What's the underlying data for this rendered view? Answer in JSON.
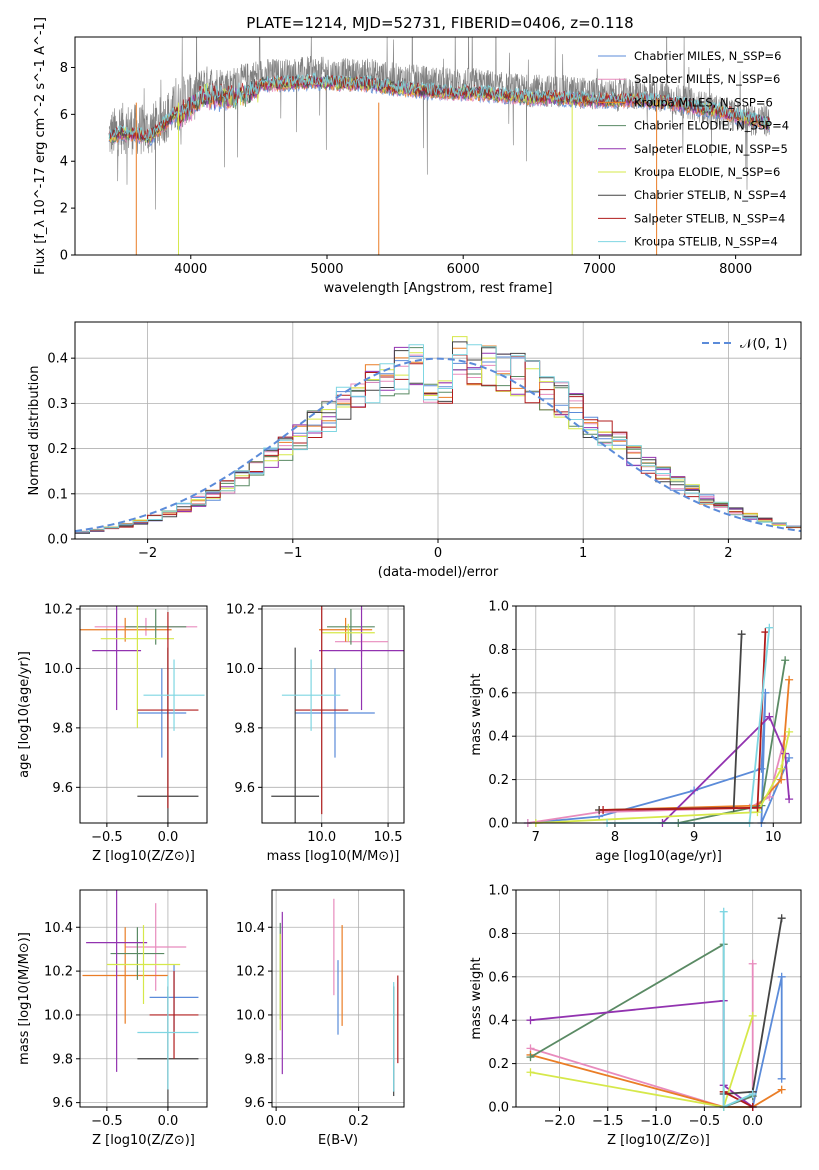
{
  "figure": {
    "title": "PLATE=1214, MJD=52731, FIBERID=0406, z=0.118"
  },
  "legend_spectrum": [
    {
      "label": "Chabrier MILES, N_SSP=6",
      "color": "#5b8bd9"
    },
    {
      "label": "Salpeter MILES, N_SSP=6",
      "color": "#e88bbd"
    },
    {
      "label": "Kroupa MILES, N_SSP=6",
      "color": "#ea7d26"
    },
    {
      "label": "Chabrier ELODIE, N_SSP=4",
      "color": "#5a8a64"
    },
    {
      "label": "Salpeter ELODIE, N_SSP=5",
      "color": "#9233b0"
    },
    {
      "label": "Kroupa ELODIE, N_SSP=6",
      "color": "#d6e84a"
    },
    {
      "label": "Chabrier STELIB, N_SSP=4",
      "color": "#444444"
    },
    {
      "label": "Salpeter STELIB, N_SSP=4",
      "color": "#b01c1c"
    },
    {
      "label": "Kroupa STELIB, N_SSP=4",
      "color": "#7fd6e2"
    }
  ],
  "legend_hist": {
    "label": "𝒩(0, 1)",
    "color": "#5b8bd9"
  },
  "chart_data": [
    {
      "id": "spectrum",
      "type": "line",
      "xlabel": "wavelength [Angstrom, rest frame]",
      "ylabel": "Flux [f_λ 10^-17 erg cm^-2 s^-1 A^-1]",
      "xlim": [
        3150,
        8480
      ],
      "ylim": [
        0,
        9.3
      ],
      "xticks": [
        4000,
        5000,
        6000,
        7000,
        8000
      ],
      "yticks": [
        0,
        2,
        4,
        6,
        8
      ],
      "data_color": "#808080",
      "x": [
        3400,
        3500,
        3700,
        3900,
        4100,
        4300,
        4500,
        4700,
        4900,
        5100,
        5300,
        5500,
        5700,
        5900,
        6100,
        6300,
        6500,
        6700,
        6900,
        7100,
        7300,
        7500,
        7700,
        7900,
        8100,
        8250
      ],
      "data_flux": [
        5.1,
        5.4,
        5.3,
        6.3,
        7.4,
        7.3,
        7.7,
        7.7,
        7.8,
        7.7,
        7.7,
        7.5,
        7.4,
        7.3,
        7.3,
        7.1,
        7.0,
        7.0,
        6.9,
        6.8,
        6.9,
        6.7,
        6.4,
        6.1,
        5.8,
        5.7
      ],
      "model_flux": [
        5.0,
        5.2,
        5.0,
        6.1,
        7.1,
        7.0,
        7.3,
        7.3,
        7.4,
        7.3,
        7.3,
        7.1,
        7.0,
        6.9,
        6.9,
        6.8,
        6.7,
        6.7,
        6.6,
        6.6,
        6.6,
        6.5,
        6.3,
        6.1,
        5.8,
        5.6
      ]
    },
    {
      "id": "residuals",
      "type": "bar",
      "xlabel": "(data-model)/error",
      "ylabel": "Normed distribution",
      "xlim": [
        -2.5,
        2.5
      ],
      "ylim": [
        0,
        0.48
      ],
      "xticks": [
        -2,
        -1,
        0,
        1,
        2
      ],
      "yticks": [
        0.0,
        0.1,
        0.2,
        0.3,
        0.4
      ],
      "bin_width": 0.1,
      "bin_start": -2.5,
      "normal_curve": {
        "mean": 0.0,
        "sigma": 1.0
      }
    },
    {
      "id": "age-vs-Z",
      "type": "scatter",
      "xlabel": "Z [log10(Z/Z⊙)]",
      "ylabel": "age  [log10(age/yr)]",
      "xlim": [
        -0.72,
        0.32
      ],
      "ylim": [
        9.48,
        10.21
      ],
      "xticks": [
        -0.5,
        0.0
      ],
      "yticks": [
        9.6,
        9.8,
        10.0,
        10.2
      ],
      "points": [
        {
          "x": -0.05,
          "xerr": 0.2,
          "y": 9.85,
          "yerr": 0.15,
          "color": "#5b8bd9"
        },
        {
          "x": -0.18,
          "xerr": 0.42,
          "y": 10.14,
          "yerr": 0.03,
          "color": "#e88bbd"
        },
        {
          "x": -0.35,
          "xerr": 0.38,
          "y": 10.13,
          "yerr": 0.04,
          "color": "#ea7d26"
        },
        {
          "x": -0.1,
          "xerr": 0.25,
          "y": 10.14,
          "yerr": 0.06,
          "color": "#5a8a64"
        },
        {
          "x": -0.42,
          "xerr": 0.2,
          "y": 10.06,
          "yerr": 0.2,
          "color": "#9233b0"
        },
        {
          "x": -0.25,
          "xerr": 0.3,
          "y": 10.1,
          "yerr": 0.3,
          "color": "#d6e84a"
        },
        {
          "x": 0.0,
          "xerr": 0.25,
          "y": 9.57,
          "yerr": 0.5,
          "color": "#444444"
        },
        {
          "x": 0.0,
          "xerr": 0.25,
          "y": 9.86,
          "yerr": 0.33,
          "color": "#b01c1c"
        },
        {
          "x": 0.05,
          "xerr": 0.25,
          "y": 9.91,
          "yerr": 0.12,
          "color": "#7fd6e2"
        }
      ]
    },
    {
      "id": "age-vs-mass",
      "type": "scatter",
      "xlabel": "mass [log10(M/M⊙)]",
      "ylabel": "",
      "xlim": [
        9.55,
        10.62
      ],
      "ylim": [
        9.48,
        10.21
      ],
      "xticks": [
        10.0,
        10.5
      ],
      "yticks": [
        9.6,
        9.8,
        10.0,
        10.2
      ],
      "points": [
        {
          "x": 10.1,
          "xerr": 0.3,
          "y": 9.85,
          "yerr": 0.15,
          "color": "#5b8bd9"
        },
        {
          "x": 10.3,
          "xerr": 0.2,
          "y": 10.09,
          "yerr": 0.05,
          "color": "#e88bbd"
        },
        {
          "x": 10.18,
          "xerr": 0.2,
          "y": 10.13,
          "yerr": 0.04,
          "color": "#ea7d26"
        },
        {
          "x": 10.22,
          "xerr": 0.18,
          "y": 10.14,
          "yerr": 0.06,
          "color": "#5a8a64"
        },
        {
          "x": 10.3,
          "xerr": 0.32,
          "y": 10.06,
          "yerr": 0.2,
          "color": "#9233b0"
        },
        {
          "x": 10.2,
          "xerr": 0.2,
          "y": 10.12,
          "yerr": 0.03,
          "color": "#d6e84a"
        },
        {
          "x": 9.8,
          "xerr": 0.18,
          "y": 9.57,
          "yerr": 0.5,
          "color": "#444444"
        },
        {
          "x": 10.0,
          "xerr": 0.2,
          "y": 9.86,
          "yerr": 0.35,
          "color": "#b01c1c"
        },
        {
          "x": 9.92,
          "xerr": 0.22,
          "y": 9.91,
          "yerr": 0.12,
          "color": "#7fd6e2"
        }
      ]
    },
    {
      "id": "mass-weight-vs-age",
      "type": "line",
      "xlabel": "age  [log10(age/yr)]",
      "ylabel": "mass weight",
      "xlim": [
        6.75,
        10.35
      ],
      "ylim": [
        0,
        1.0
      ],
      "xticks": [
        7,
        8,
        9,
        10
      ],
      "yticks": [
        0.0,
        0.2,
        0.4,
        0.6,
        0.8,
        1.0
      ],
      "series": [
        {
          "color": "#5b8bd9",
          "x": [
            6.9,
            7.8,
            9.0,
            9.85,
            9.9,
            9.85,
            10.2
          ],
          "y": [
            0.0,
            0.03,
            0.15,
            0.25,
            0.6,
            0.0,
            0.3
          ]
        },
        {
          "color": "#e88bbd",
          "x": [
            6.9,
            7.8,
            9.7,
            9.95,
            10.15
          ],
          "y": [
            0.0,
            0.05,
            0.07,
            0.12,
            0.4
          ]
        },
        {
          "color": "#ea7d26",
          "x": [
            7.8,
            9.8,
            10.1,
            10.2
          ],
          "y": [
            0.06,
            0.08,
            0.2,
            0.66
          ]
        },
        {
          "color": "#5a8a64",
          "x": [
            8.8,
            9.85,
            10.15
          ],
          "y": [
            0.0,
            0.08,
            0.75
          ]
        },
        {
          "color": "#9233b0",
          "x": [
            8.6,
            9.95,
            10.15,
            10.2
          ],
          "y": [
            0.0,
            0.49,
            0.32,
            0.11
          ]
        },
        {
          "color": "#d6e84a",
          "x": [
            7.0,
            9.8,
            10.1,
            10.2
          ],
          "y": [
            0.0,
            0.05,
            0.25,
            0.42
          ]
        },
        {
          "color": "#444444",
          "x": [
            7.8,
            9.5,
            9.6
          ],
          "y": [
            0.06,
            0.07,
            0.87
          ]
        },
        {
          "color": "#b01c1c",
          "x": [
            7.85,
            9.8,
            9.9
          ],
          "y": [
            0.06,
            0.07,
            0.88
          ]
        },
        {
          "color": "#7fd6e2",
          "x": [
            7.9,
            9.7,
            9.95
          ],
          "y": [
            0.0,
            0.0,
            0.9
          ]
        }
      ]
    },
    {
      "id": "mass-vs-Z",
      "type": "scatter",
      "xlabel": "Z [log10(Z/Z⊙)]",
      "ylabel": "mass [log10(M/M⊙)]",
      "xlim": [
        -0.72,
        0.32
      ],
      "ylim": [
        9.58,
        10.57
      ],
      "xticks": [
        -0.5,
        0.0
      ],
      "yticks": [
        9.6,
        9.8,
        10.0,
        10.2,
        10.4
      ],
      "points": [
        {
          "x": 0.05,
          "xerr": 0.2,
          "y": 10.08,
          "yerr": 0.15,
          "color": "#5b8bd9"
        },
        {
          "x": -0.1,
          "xerr": 0.25,
          "y": 10.31,
          "yerr": 0.2,
          "color": "#e88bbd"
        },
        {
          "x": -0.35,
          "xerr": 0.35,
          "y": 10.18,
          "yerr": 0.22,
          "color": "#ea7d26"
        },
        {
          "x": -0.25,
          "xerr": 0.22,
          "y": 10.28,
          "yerr": 0.12,
          "color": "#5a8a64"
        },
        {
          "x": -0.42,
          "xerr": 0.25,
          "y": 10.33,
          "yerr": 0.59,
          "color": "#9233b0"
        },
        {
          "x": -0.2,
          "xerr": 0.3,
          "y": 10.23,
          "yerr": 0.18,
          "color": "#d6e84a"
        },
        {
          "x": 0.0,
          "xerr": 0.25,
          "y": 9.8,
          "yerr": 0.33,
          "color": "#444444"
        },
        {
          "x": 0.05,
          "xerr": 0.2,
          "y": 10.0,
          "yerr": 0.2,
          "color": "#b01c1c"
        },
        {
          "x": 0.0,
          "xerr": 0.25,
          "y": 9.92,
          "yerr": 0.26,
          "color": "#7fd6e2"
        }
      ]
    },
    {
      "id": "mass-vs-EBV",
      "type": "scatter",
      "xlabel": "E(B-V)",
      "ylabel": "",
      "xlim": [
        -0.01,
        0.31
      ],
      "ylim": [
        9.58,
        10.57
      ],
      "xticks": [
        0.0,
        0.2
      ],
      "yticks": [
        9.6,
        9.8,
        10.0,
        10.2,
        10.4
      ],
      "points": [
        {
          "x": 0.15,
          "xerr": 0.0,
          "y": 10.08,
          "yerr": 0.17,
          "color": "#5b8bd9"
        },
        {
          "x": 0.14,
          "xerr": 0.0,
          "y": 10.31,
          "yerr": 0.22,
          "color": "#e88bbd"
        },
        {
          "x": 0.16,
          "xerr": 0.0,
          "y": 10.18,
          "yerr": 0.23,
          "color": "#ea7d26"
        },
        {
          "x": 0.01,
          "xerr": 0.0,
          "y": 10.2,
          "yerr": 0.22,
          "color": "#5a8a64"
        },
        {
          "x": 0.015,
          "xerr": 0.0,
          "y": 10.1,
          "yerr": 0.37,
          "color": "#9233b0"
        },
        {
          "x": 0.01,
          "xerr": 0.0,
          "y": 10.15,
          "yerr": 0.22,
          "color": "#d6e84a"
        },
        {
          "x": 0.285,
          "xerr": 0.0,
          "y": 9.88,
          "yerr": 0.25,
          "color": "#444444"
        },
        {
          "x": 0.295,
          "xerr": 0.0,
          "y": 9.98,
          "yerr": 0.2,
          "color": "#b01c1c"
        },
        {
          "x": 0.285,
          "xerr": 0.0,
          "y": 9.9,
          "yerr": 0.25,
          "color": "#7fd6e2"
        }
      ]
    },
    {
      "id": "mass-weight-vs-Z",
      "type": "line",
      "xlabel": "Z [log10(Z/Z⊙)]",
      "ylabel": "mass weight",
      "xlim": [
        -2.45,
        0.5
      ],
      "ylim": [
        0,
        1.0
      ],
      "xticks": [
        -2.0,
        -1.5,
        -1.0,
        -0.5,
        0.0
      ],
      "yticks": [
        0.0,
        0.2,
        0.4,
        0.6,
        0.8,
        1.0
      ],
      "series": [
        {
          "color": "#5b8bd9",
          "x": [
            -0.3,
            0.0,
            0.3,
            0.3
          ],
          "y": [
            0.0,
            0.0,
            0.6,
            0.13
          ]
        },
        {
          "color": "#e88bbd",
          "x": [
            -2.3,
            -0.3,
            0.0,
            0.0
          ],
          "y": [
            0.27,
            0.0,
            0.05,
            0.66
          ]
        },
        {
          "color": "#ea7d26",
          "x": [
            -2.3,
            -0.3,
            0.0,
            0.3
          ],
          "y": [
            0.24,
            0.0,
            0.0,
            0.08
          ]
        },
        {
          "color": "#5a8a64",
          "x": [
            -2.3,
            -0.3,
            -0.3,
            0.0
          ],
          "y": [
            0.23,
            0.75,
            0.0,
            0.05
          ]
        },
        {
          "color": "#9233b0",
          "x": [
            -2.3,
            -0.3,
            -0.3,
            0.0
          ],
          "y": [
            0.4,
            0.49,
            0.1,
            0.0
          ]
        },
        {
          "color": "#d6e84a",
          "x": [
            -2.3,
            -0.3,
            0.0
          ],
          "y": [
            0.16,
            0.0,
            0.42
          ]
        },
        {
          "color": "#444444",
          "x": [
            -0.3,
            0.0,
            0.3
          ],
          "y": [
            0.06,
            0.07,
            0.87
          ]
        },
        {
          "color": "#b01c1c",
          "x": [
            -0.3,
            0.0
          ],
          "y": [
            0.07,
            0.0
          ]
        },
        {
          "color": "#7fd6e2",
          "x": [
            -0.3,
            -0.3,
            0.0
          ],
          "y": [
            0.9,
            0.0,
            0.06
          ]
        }
      ]
    }
  ]
}
